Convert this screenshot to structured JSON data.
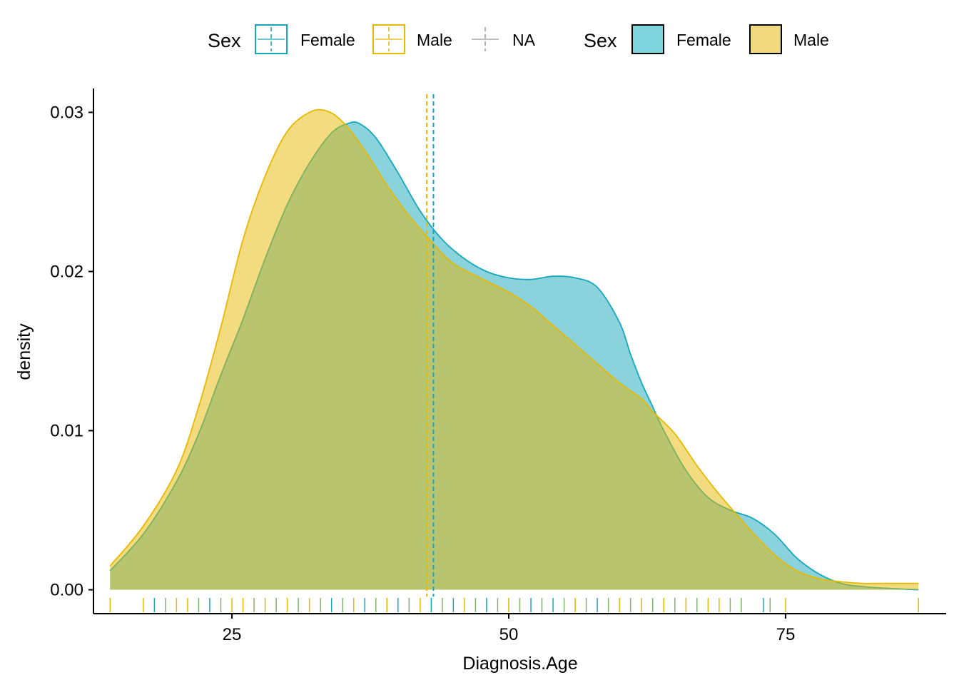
{
  "chart_data": {
    "type": "area",
    "xlabel": "Diagnosis.Age",
    "ylabel": "density",
    "xlim": [
      12.5,
      89.5
    ],
    "ylim": [
      -0.0015,
      0.0315
    ],
    "xticks": [
      25,
      50,
      75
    ],
    "yticks": [
      0.0,
      0.01,
      0.02,
      0.03
    ],
    "ytick_labels": [
      "0.00",
      "0.01",
      "0.02",
      "0.03"
    ],
    "grid": false,
    "legend_position": "top",
    "legends": [
      {
        "title": "Sex",
        "kind": "vline",
        "entries": [
          {
            "label": "Female",
            "color": "#15A8BC"
          },
          {
            "label": "Male",
            "color": "#E7B800"
          },
          {
            "label": "NA",
            "color": "#999999"
          }
        ]
      },
      {
        "title": "Sex",
        "kind": "fill",
        "entries": [
          {
            "label": "Female",
            "color": "#7FD5DE"
          },
          {
            "label": "Male",
            "color": "#F2DA80"
          }
        ]
      }
    ],
    "series": [
      {
        "name": "Female",
        "color": "#15A8BC",
        "mean": 43.2,
        "x": [
          14,
          17,
          20,
          22,
          24,
          26,
          28,
          30,
          32,
          34,
          35.5,
          36.5,
          38,
          40,
          42,
          44,
          46,
          48,
          50,
          52,
          54,
          56,
          58,
          60,
          61,
          62,
          63,
          64,
          66,
          68,
          70,
          72,
          74,
          76,
          78,
          80,
          82,
          84,
          87
        ],
        "y": [
          0.0012,
          0.0035,
          0.0068,
          0.0098,
          0.0135,
          0.017,
          0.0208,
          0.0242,
          0.0268,
          0.0287,
          0.0293,
          0.0293,
          0.0284,
          0.0262,
          0.0238,
          0.022,
          0.0208,
          0.02,
          0.0196,
          0.0195,
          0.0197,
          0.0196,
          0.019,
          0.0168,
          0.0148,
          0.013,
          0.0115,
          0.01,
          0.0075,
          0.0058,
          0.005,
          0.0045,
          0.0035,
          0.002,
          0.001,
          0.0004,
          0.0002,
          0.0001,
          0.0
        ]
      },
      {
        "name": "Male",
        "color": "#E7B800",
        "mean": 42.6,
        "x": [
          14,
          17,
          20,
          22,
          24,
          26,
          28,
          30,
          32,
          33.5,
          35,
          37,
          39,
          41,
          43,
          45,
          48,
          50,
          52,
          54,
          57,
          60,
          62,
          63,
          65,
          67,
          69,
          71,
          72,
          74,
          76,
          78,
          80,
          82,
          84,
          87
        ],
        "y": [
          0.0015,
          0.004,
          0.0075,
          0.0115,
          0.0165,
          0.022,
          0.026,
          0.0288,
          0.03,
          0.0301,
          0.0294,
          0.0276,
          0.0254,
          0.0235,
          0.0219,
          0.0205,
          0.0194,
          0.0187,
          0.0178,
          0.0166,
          0.0148,
          0.013,
          0.012,
          0.0112,
          0.0098,
          0.0078,
          0.006,
          0.0044,
          0.0036,
          0.0022,
          0.0012,
          0.0007,
          0.0005,
          0.0004,
          0.0004,
          0.0004
        ]
      }
    ],
    "rug": [
      {
        "x": 14.0,
        "color": "#E7B800"
      },
      {
        "x": 17.0,
        "color": "#E7B800"
      },
      {
        "x": 18.0,
        "color": "#15A8BC"
      },
      {
        "x": 19.0,
        "color": "#7FB36A"
      },
      {
        "x": 20.0,
        "color": "#E7B800"
      },
      {
        "x": 21.0,
        "color": "#E7B800"
      },
      {
        "x": 22.0,
        "color": "#7FB36A"
      },
      {
        "x": 23.0,
        "color": "#15A8BC"
      },
      {
        "x": 24.0,
        "color": "#7FB36A"
      },
      {
        "x": 25.0,
        "color": "#E7B800"
      },
      {
        "x": 26.0,
        "color": "#E7B800"
      },
      {
        "x": 27.0,
        "color": "#7FB36A"
      },
      {
        "x": 28.0,
        "color": "#E7B800"
      },
      {
        "x": 29.0,
        "color": "#7FB36A"
      },
      {
        "x": 30.0,
        "color": "#E7B800"
      },
      {
        "x": 31.0,
        "color": "#7FB36A"
      },
      {
        "x": 32.0,
        "color": "#E7B800"
      },
      {
        "x": 33.0,
        "color": "#7FB36A"
      },
      {
        "x": 34.0,
        "color": "#15A8BC"
      },
      {
        "x": 35.0,
        "color": "#7FB36A"
      },
      {
        "x": 36.0,
        "color": "#E7B800"
      },
      {
        "x": 37.0,
        "color": "#15A8BC"
      },
      {
        "x": 38.0,
        "color": "#7FB36A"
      },
      {
        "x": 39.0,
        "color": "#E7B800"
      },
      {
        "x": 40.0,
        "color": "#15A8BC"
      },
      {
        "x": 41.0,
        "color": "#7FB36A"
      },
      {
        "x": 42.0,
        "color": "#E7B800"
      },
      {
        "x": 43.0,
        "color": "#15A8BC"
      },
      {
        "x": 44.0,
        "color": "#7FB36A"
      },
      {
        "x": 45.0,
        "color": "#15A8BC"
      },
      {
        "x": 46.0,
        "color": "#E7B800"
      },
      {
        "x": 47.0,
        "color": "#7FB36A"
      },
      {
        "x": 48.0,
        "color": "#15A8BC"
      },
      {
        "x": 49.0,
        "color": "#7FB36A"
      },
      {
        "x": 50.0,
        "color": "#E7B800"
      },
      {
        "x": 51.0,
        "color": "#7FB36A"
      },
      {
        "x": 52.0,
        "color": "#15A8BC"
      },
      {
        "x": 53.0,
        "color": "#7FB36A"
      },
      {
        "x": 54.0,
        "color": "#15A8BC"
      },
      {
        "x": 55.0,
        "color": "#7FB36A"
      },
      {
        "x": 56.0,
        "color": "#E7B800"
      },
      {
        "x": 57.0,
        "color": "#7FB36A"
      },
      {
        "x": 58.0,
        "color": "#15A8BC"
      },
      {
        "x": 59.0,
        "color": "#7FB36A"
      },
      {
        "x": 60.0,
        "color": "#E7B800"
      },
      {
        "x": 61.0,
        "color": "#7FB36A"
      },
      {
        "x": 62.0,
        "color": "#E7B800"
      },
      {
        "x": 63.0,
        "color": "#7FB36A"
      },
      {
        "x": 64.0,
        "color": "#E7B800"
      },
      {
        "x": 65.0,
        "color": "#7FB36A"
      },
      {
        "x": 66.0,
        "color": "#E7B800"
      },
      {
        "x": 67.0,
        "color": "#7FB36A"
      },
      {
        "x": 68.0,
        "color": "#E7B800"
      },
      {
        "x": 69.0,
        "color": "#E7B800"
      },
      {
        "x": 70.0,
        "color": "#7FB36A"
      },
      {
        "x": 71.0,
        "color": "#7FB36A"
      },
      {
        "x": 73.0,
        "color": "#15A8BC"
      },
      {
        "x": 73.6,
        "color": "#7FB36A"
      },
      {
        "x": 75.0,
        "color": "#E7B800"
      },
      {
        "x": 87.0,
        "color": "#E7B800"
      }
    ]
  }
}
